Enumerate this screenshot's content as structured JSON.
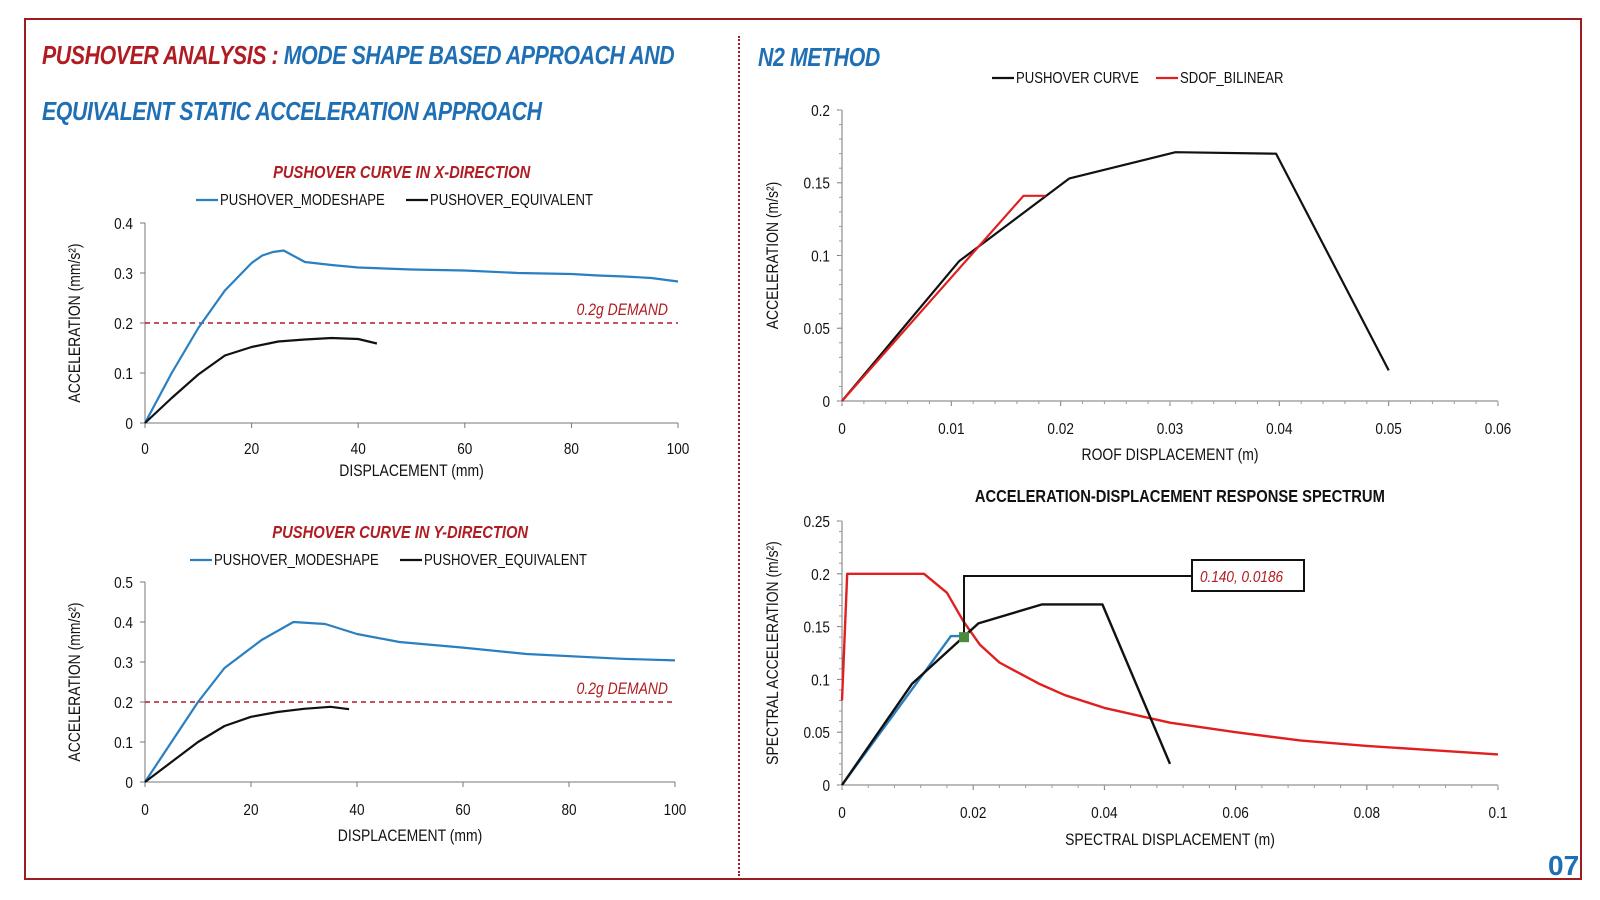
{
  "header": {
    "title_red": "PUSHOVER ANALYSIS :",
    "title_blue_1": "MODE SHAPE BASED APPROACH AND",
    "title_blue_2": "EQUIVALENT STATIC ACCELERATION APPROACH",
    "n2_title": "N2 METHOD",
    "page_number": "07"
  },
  "colors": {
    "brand_red": "#b01c22",
    "brand_blue": "#1f6fb5",
    "curve_blue": "#2a7fc1",
    "curve_black": "#111111",
    "curve_red": "#e02020",
    "marker_green": "#4a8a3a"
  },
  "chart_data": [
    {
      "id": "x",
      "type": "line",
      "title": "PUSHOVER CURVE IN X-DIRECTION",
      "xlabel": "DISPLACEMENT (mm)",
      "ylabel": "ACCELERATION (mm/s²)",
      "xlim": [
        0,
        100
      ],
      "ylim": [
        0,
        0.4
      ],
      "xticks": [
        0,
        20,
        40,
        60,
        80,
        100
      ],
      "xtick_labels": [
        "0",
        "20",
        "40",
        "60",
        "80",
        "100"
      ],
      "yticks": [
        0,
        0.1,
        0.2,
        0.3,
        0.4
      ],
      "ytick_labels": [
        "0",
        "0.1",
        "0.2",
        "0.3",
        "0.4"
      ],
      "legend_position": "top",
      "reference_line": {
        "y": 0.2,
        "label": "0.2g DEMAND",
        "color": "#b01c22"
      },
      "series": [
        {
          "name": "PUSHOVER_MODESHAPE",
          "color": "#2a7fc1",
          "x": [
            0,
            5,
            10,
            15,
            20,
            22,
            24,
            26,
            30,
            35,
            40,
            50,
            60,
            70,
            80,
            85,
            90,
            95,
            100
          ],
          "y": [
            0,
            0.1,
            0.19,
            0.265,
            0.32,
            0.335,
            0.342,
            0.345,
            0.322,
            0.316,
            0.311,
            0.307,
            0.305,
            0.3,
            0.298,
            0.295,
            0.293,
            0.29,
            0.283
          ]
        },
        {
          "name": "PUSHOVER_EQUIVALENT",
          "color": "#111111",
          "x": [
            0,
            5,
            10,
            15,
            20,
            25,
            30,
            35,
            40,
            43.5
          ],
          "y": [
            0,
            0.05,
            0.097,
            0.135,
            0.152,
            0.163,
            0.167,
            0.17,
            0.168,
            0.159
          ]
        }
      ]
    },
    {
      "id": "y",
      "type": "line",
      "title": "PUSHOVER CURVE IN Y-DIRECTION",
      "xlabel": "DISPLACEMENT (mm)",
      "ylabel": "ACCELERATION (mm/s²)",
      "xlim": [
        0,
        100
      ],
      "ylim": [
        0,
        0.5
      ],
      "xticks": [
        0,
        20,
        40,
        60,
        80,
        100
      ],
      "xtick_labels": [
        "0",
        "20",
        "40",
        "60",
        "80",
        "100"
      ],
      "yticks": [
        0,
        0.1,
        0.2,
        0.3,
        0.4,
        0.5
      ],
      "ytick_labels": [
        "0",
        "0.1",
        "0.2",
        "0.3",
        "0.4",
        "0.5"
      ],
      "legend_position": "top",
      "reference_line": {
        "y": 0.2,
        "label": "0.2g DEMAND",
        "color": "#b01c22"
      },
      "series": [
        {
          "name": "PUSHOVER_MODESHAPE",
          "color": "#2a7fc1",
          "x": [
            0,
            5,
            10,
            15,
            22,
            28,
            34,
            40,
            48,
            60,
            72,
            90,
            100
          ],
          "y": [
            0,
            0.1,
            0.2,
            0.285,
            0.355,
            0.4,
            0.395,
            0.37,
            0.35,
            0.336,
            0.32,
            0.308,
            0.304
          ]
        },
        {
          "name": "PUSHOVER_EQUIVALENT",
          "color": "#111111",
          "x": [
            0,
            5,
            10,
            15,
            20,
            25,
            30,
            35,
            38.5
          ],
          "y": [
            0,
            0.05,
            0.1,
            0.14,
            0.163,
            0.175,
            0.183,
            0.188,
            0.182
          ]
        }
      ]
    },
    {
      "id": "n2",
      "type": "line",
      "title": "",
      "xlabel": "ROOF DISPLACEMENT (m)",
      "ylabel": "ACCELERATION (m/s²)",
      "xlim": [
        0,
        0.06
      ],
      "ylim": [
        0,
        0.2
      ],
      "xticks": [
        0,
        0.01,
        0.02,
        0.03,
        0.04,
        0.05,
        0.06
      ],
      "xtick_labels": [
        "0",
        "0.01",
        "0.02",
        "0.03",
        "0.04",
        "0.05",
        "0.06"
      ],
      "yticks": [
        0,
        0.05,
        0.1,
        0.15,
        0.2
      ],
      "ytick_labels": [
        "0",
        "0.05",
        "0.1",
        "0.15",
        "0.2"
      ],
      "legend_position": "top",
      "series": [
        {
          "name": "PUSHOVER CURVE",
          "color": "#111111",
          "x": [
            0,
            0.0107,
            0.0208,
            0.0305,
            0.0397,
            0.05
          ],
          "y": [
            0,
            0.096,
            0.153,
            0.171,
            0.17,
            0.021
          ]
        },
        {
          "name": "SDOF_BILINEAR",
          "color": "#e02020",
          "x": [
            0,
            0.0166,
            0.0186
          ],
          "y": [
            0,
            0.141,
            0.141
          ]
        }
      ]
    },
    {
      "id": "adrs",
      "type": "line",
      "title": "ACCELERATION-DISPLACEMENT RESPONSE SPECTRUM",
      "xlabel": "SPECTRAL DISPLACEMENT (m)",
      "ylabel": "SPECTRAL ACCELERATION (m/s²)",
      "xlim": [
        0,
        0.1
      ],
      "ylim": [
        0,
        0.25
      ],
      "xticks": [
        0,
        0.02,
        0.04,
        0.06,
        0.08,
        0.1
      ],
      "xtick_labels": [
        "0",
        "0.02",
        "0.04",
        "0.06",
        "0.08",
        "0.1"
      ],
      "yticks": [
        0,
        0.05,
        0.1,
        0.15,
        0.2,
        0.25
      ],
      "ytick_labels": [
        "0",
        "0.05",
        "0.1",
        "0.15",
        "0.2",
        "0.25"
      ],
      "series": [
        {
          "name": "",
          "color": "#e02020",
          "x": [
            0,
            0.0008,
            0.0125,
            0.016,
            0.0185,
            0.021,
            0.024,
            0.027,
            0.03,
            0.034,
            0.04,
            0.05,
            0.06,
            0.07,
            0.08,
            0.09,
            0.1
          ],
          "y": [
            0.08,
            0.2,
            0.2,
            0.182,
            0.155,
            0.133,
            0.116,
            0.106,
            0.096,
            0.085,
            0.073,
            0.059,
            0.05,
            0.042,
            0.037,
            0.033,
            0.029
          ]
        },
        {
          "name": "",
          "color": "#2a7fc1",
          "x": [
            0,
            0.0166,
            0.0186
          ],
          "y": [
            0,
            0.141,
            0.141
          ]
        },
        {
          "name": "",
          "color": "#111111",
          "x": [
            0,
            0.0107,
            0.0208,
            0.0305,
            0.0397,
            0.05
          ],
          "y": [
            0,
            0.096,
            0.153,
            0.171,
            0.171,
            0.02
          ]
        }
      ],
      "performance_point": {
        "x": 0.0186,
        "y": 0.14,
        "label": "0.140, 0.0186",
        "color": "#4a8a3a"
      }
    }
  ]
}
